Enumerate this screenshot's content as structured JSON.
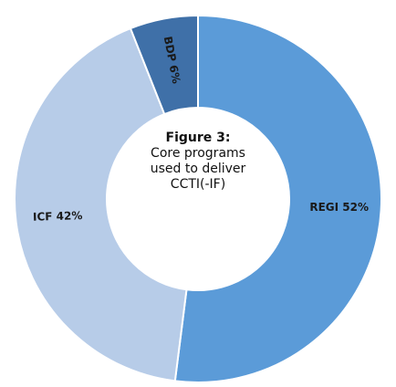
{
  "chart_data": {
    "type": "donut",
    "title": "Figure 3:",
    "subtitle": "Core programs used to deliver CCTI(-IF)",
    "values": [
      52,
      42,
      6
    ],
    "value_labels": [
      "REGI 52%",
      "ICF 42%",
      "BDP 6%"
    ],
    "colors": [
      "#5b9bd8",
      "#b7cce8",
      "#3f70a8"
    ]
  }
}
